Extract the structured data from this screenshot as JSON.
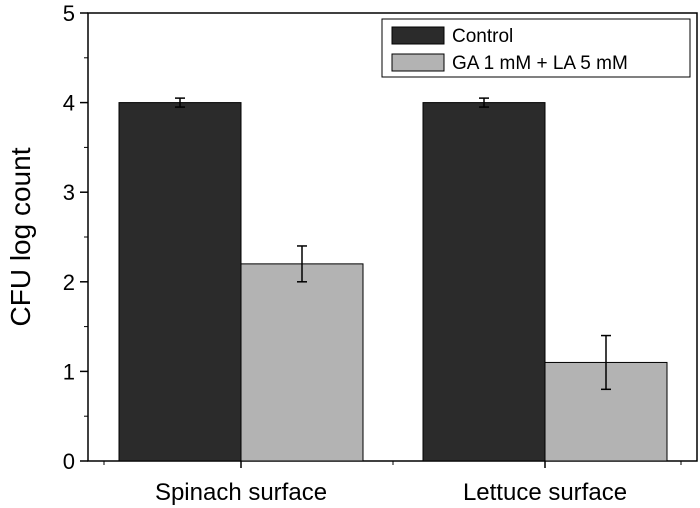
{
  "chart_data": {
    "type": "bar",
    "title": "",
    "xlabel": "",
    "ylabel": "CFU log count",
    "ylim": [
      0,
      5
    ],
    "yticks": [
      "0",
      "1",
      "2",
      "3",
      "4",
      "5"
    ],
    "categories": [
      "Spinach surface",
      "Lettuce surface"
    ],
    "series": [
      {
        "name": "Control",
        "color": "#2b2b2b",
        "values": [
          4.0,
          4.0
        ],
        "errors": [
          0.05,
          0.05
        ]
      },
      {
        "name": "GA 1 mM + LA 5 mM",
        "color": "#b3b3b3",
        "values": [
          2.2,
          1.1
        ],
        "errors": [
          0.2,
          0.3
        ]
      }
    ],
    "legend_position": "top-right",
    "grid": false
  }
}
